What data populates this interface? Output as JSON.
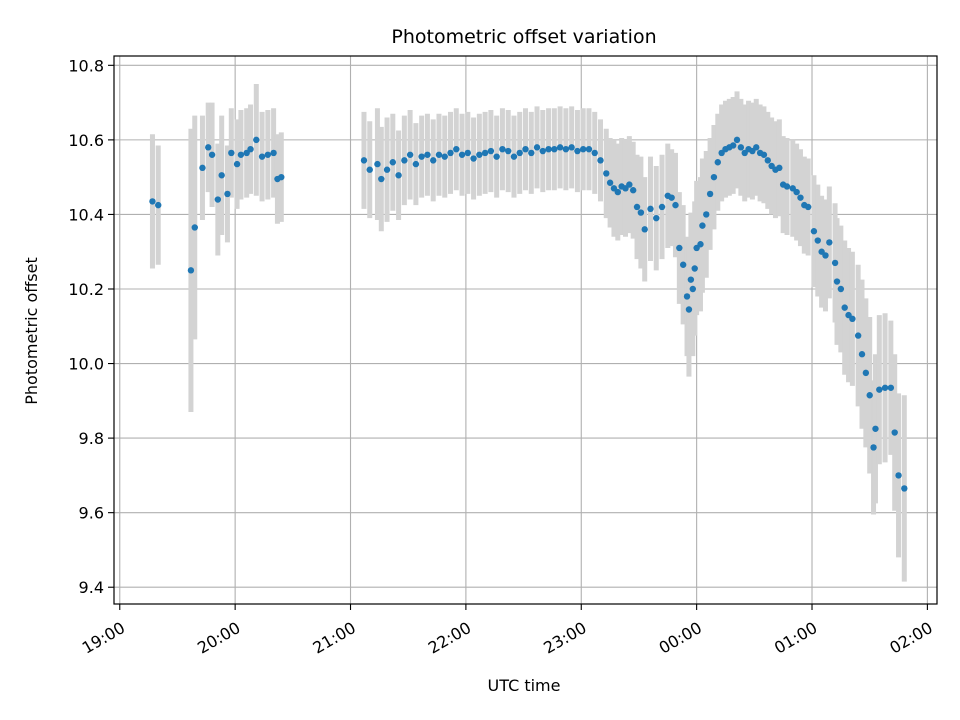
{
  "chart_data": {
    "type": "scatter",
    "title": "Photometric offset variation",
    "xlabel": "UTC time",
    "ylabel": "Photometric offset",
    "xlim": [
      "18:57",
      "02:05"
    ],
    "ylim": [
      9.355,
      10.825
    ],
    "grid": true,
    "legend": "none",
    "colors": {
      "points": "#1f77b4",
      "errorbars": "#d3d3d3",
      "grid": "#b0b0b0"
    },
    "x_ticks": [
      "19:00",
      "20:00",
      "21:00",
      "22:00",
      "23:00",
      "00:00",
      "01:00",
      "02:00"
    ],
    "y_ticks": [
      "9.4",
      "9.6",
      "9.8",
      "10.0",
      "10.2",
      "10.4",
      "10.6",
      "10.8"
    ],
    "series": [
      {
        "x_unit": "UTC time",
        "points": [
          [
            "19:17",
            10.435,
            0.18
          ],
          [
            "19:20",
            10.425,
            0.16
          ],
          [
            "19:37",
            10.25,
            0.38
          ],
          [
            "19:39",
            10.365,
            0.3
          ],
          [
            "19:43",
            10.525,
            0.14
          ],
          [
            "19:46",
            10.58,
            0.12
          ],
          [
            "19:48",
            10.56,
            0.14
          ],
          [
            "19:51",
            10.44,
            0.15
          ],
          [
            "19:53",
            10.505,
            0.16
          ],
          [
            "19:56",
            10.455,
            0.13
          ],
          [
            "19:58",
            10.565,
            0.12
          ],
          [
            "20:01",
            10.535,
            0.12
          ],
          [
            "20:03",
            10.56,
            0.12
          ],
          [
            "20:06",
            10.565,
            0.12
          ],
          [
            "20:08",
            10.575,
            0.12
          ],
          [
            "20:11",
            10.6,
            0.15
          ],
          [
            "20:14",
            10.555,
            0.12
          ],
          [
            "20:17",
            10.56,
            0.12
          ],
          [
            "20:20",
            10.565,
            0.12
          ],
          [
            "20:22",
            10.495,
            0.12
          ],
          [
            "20:24",
            10.5,
            0.12
          ],
          [
            "21:07",
            10.545,
            0.13
          ],
          [
            "21:10",
            10.52,
            0.13
          ],
          [
            "21:14",
            10.535,
            0.15
          ],
          [
            "21:16",
            10.495,
            0.14
          ],
          [
            "21:19",
            10.52,
            0.14
          ],
          [
            "21:22",
            10.54,
            0.13
          ],
          [
            "21:25",
            10.505,
            0.12
          ],
          [
            "21:28",
            10.545,
            0.12
          ],
          [
            "21:31",
            10.56,
            0.12
          ],
          [
            "21:34",
            10.535,
            0.11
          ],
          [
            "21:37",
            10.555,
            0.11
          ],
          [
            "21:40",
            10.56,
            0.11
          ],
          [
            "21:43",
            10.545,
            0.11
          ],
          [
            "21:46",
            10.56,
            0.11
          ],
          [
            "21:49",
            10.555,
            0.11
          ],
          [
            "21:52",
            10.565,
            0.11
          ],
          [
            "21:55",
            10.575,
            0.11
          ],
          [
            "21:58",
            10.56,
            0.11
          ],
          [
            "22:01",
            10.565,
            0.11
          ],
          [
            "22:04",
            10.55,
            0.11
          ],
          [
            "22:07",
            10.56,
            0.11
          ],
          [
            "22:10",
            10.565,
            0.11
          ],
          [
            "22:13",
            10.57,
            0.11
          ],
          [
            "22:16",
            10.555,
            0.11
          ],
          [
            "22:19",
            10.575,
            0.11
          ],
          [
            "22:22",
            10.57,
            0.11
          ],
          [
            "22:25",
            10.555,
            0.11
          ],
          [
            "22:28",
            10.565,
            0.11
          ],
          [
            "22:31",
            10.575,
            0.11
          ],
          [
            "22:34",
            10.565,
            0.11
          ],
          [
            "22:37",
            10.58,
            0.11
          ],
          [
            "22:40",
            10.57,
            0.11
          ],
          [
            "22:43",
            10.575,
            0.11
          ],
          [
            "22:46",
            10.575,
            0.11
          ],
          [
            "22:49",
            10.58,
            0.11
          ],
          [
            "22:52",
            10.575,
            0.11
          ],
          [
            "22:55",
            10.58,
            0.11
          ],
          [
            "22:58",
            10.57,
            0.11
          ],
          [
            "23:01",
            10.575,
            0.11
          ],
          [
            "23:04",
            10.575,
            0.11
          ],
          [
            "23:07",
            10.565,
            0.11
          ],
          [
            "23:10",
            10.545,
            0.11
          ],
          [
            "23:13",
            10.51,
            0.12
          ],
          [
            "23:15",
            10.485,
            0.12
          ],
          [
            "23:17",
            10.47,
            0.13
          ],
          [
            "23:19",
            10.46,
            0.13
          ],
          [
            "23:21",
            10.475,
            0.13
          ],
          [
            "23:23",
            10.47,
            0.13
          ],
          [
            "23:25",
            10.48,
            0.13
          ],
          [
            "23:27",
            10.465,
            0.13
          ],
          [
            "23:29",
            10.42,
            0.14
          ],
          [
            "23:31",
            10.405,
            0.15
          ],
          [
            "23:33",
            10.36,
            0.14
          ],
          [
            "23:36",
            10.415,
            0.14
          ],
          [
            "23:39",
            10.39,
            0.14
          ],
          [
            "23:42",
            10.42,
            0.14
          ],
          [
            "23:45",
            10.45,
            0.14
          ],
          [
            "23:47",
            10.445,
            0.13
          ],
          [
            "23:49",
            10.425,
            0.14
          ],
          [
            "23:51",
            10.31,
            0.15
          ],
          [
            "23:53",
            10.265,
            0.16
          ],
          [
            "23:55",
            10.18,
            0.16
          ],
          [
            "23:56",
            10.145,
            0.18
          ],
          [
            "23:57",
            10.225,
            0.18
          ],
          [
            "23:58",
            10.2,
            0.18
          ],
          [
            "23:59",
            10.255,
            0.18
          ],
          [
            "00:00",
            10.31,
            0.18
          ],
          [
            "00:02",
            10.32,
            0.18
          ],
          [
            "00:03",
            10.37,
            0.18
          ],
          [
            "00:05",
            10.4,
            0.17
          ],
          [
            "00:07",
            10.455,
            0.15
          ],
          [
            "00:09",
            10.5,
            0.14
          ],
          [
            "00:11",
            10.54,
            0.13
          ],
          [
            "00:13",
            10.565,
            0.13
          ],
          [
            "00:15",
            10.575,
            0.13
          ],
          [
            "00:17",
            10.58,
            0.13
          ],
          [
            "00:19",
            10.585,
            0.13
          ],
          [
            "00:21",
            10.6,
            0.13
          ],
          [
            "00:23",
            10.58,
            0.13
          ],
          [
            "00:25",
            10.565,
            0.13
          ],
          [
            "00:27",
            10.575,
            0.13
          ],
          [
            "00:29",
            10.57,
            0.13
          ],
          [
            "00:31",
            10.58,
            0.13
          ],
          [
            "00:33",
            10.565,
            0.13
          ],
          [
            "00:35",
            10.56,
            0.13
          ],
          [
            "00:37",
            10.545,
            0.13
          ],
          [
            "00:39",
            10.53,
            0.13
          ],
          [
            "00:41",
            10.52,
            0.13
          ],
          [
            "00:43",
            10.525,
            0.13
          ],
          [
            "00:45",
            10.48,
            0.13
          ],
          [
            "00:47",
            10.475,
            0.13
          ],
          [
            "00:50",
            10.47,
            0.13
          ],
          [
            "00:52",
            10.46,
            0.13
          ],
          [
            "00:54",
            10.445,
            0.13
          ],
          [
            "00:56",
            10.425,
            0.13
          ],
          [
            "00:58",
            10.42,
            0.13
          ],
          [
            "01:01",
            10.355,
            0.15
          ],
          [
            "01:03",
            10.33,
            0.15
          ],
          [
            "01:05",
            10.3,
            0.15
          ],
          [
            "01:07",
            10.29,
            0.15
          ],
          [
            "01:09",
            10.325,
            0.15
          ],
          [
            "01:12",
            10.27,
            0.16
          ],
          [
            "01:13",
            10.22,
            0.17
          ],
          [
            "01:15",
            10.2,
            0.17
          ],
          [
            "01:17",
            10.15,
            0.18
          ],
          [
            "01:19",
            10.13,
            0.18
          ],
          [
            "01:21",
            10.12,
            0.18
          ],
          [
            "01:24",
            10.075,
            0.19
          ],
          [
            "01:26",
            10.025,
            0.2
          ],
          [
            "01:28",
            9.975,
            0.2
          ],
          [
            "01:30",
            9.915,
            0.21
          ],
          [
            "01:32",
            9.775,
            0.18
          ],
          [
            "01:33",
            9.825,
            0.2
          ],
          [
            "01:35",
            9.93,
            0.2
          ],
          [
            "01:38",
            9.935,
            0.2
          ],
          [
            "01:41",
            9.935,
            0.18
          ],
          [
            "01:43",
            9.815,
            0.21
          ],
          [
            "01:45",
            9.7,
            0.22
          ],
          [
            "01:48",
            9.665,
            0.25
          ]
        ]
      }
    ]
  }
}
